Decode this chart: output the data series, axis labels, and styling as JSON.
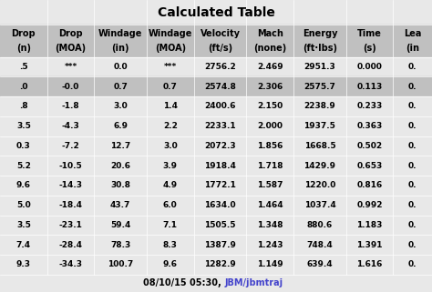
{
  "title": "Calculated Table",
  "headers_line1": [
    "Drop",
    "Drop",
    "Windage",
    "Windage",
    "Velocity",
    "Mach",
    "Energy",
    "Time",
    "Lea"
  ],
  "headers_line2": [
    "(n)",
    "(MOA)",
    "(in)",
    "(MOA)",
    "(ft/s)",
    "(none)",
    "(ft·lbs)",
    "(s)",
    "(in"
  ],
  "col_headers": [
    [
      "Drop",
      "(n)"
    ],
    [
      "Drop",
      "(MOA)"
    ],
    [
      "Windage",
      "(in)"
    ],
    [
      "Windage",
      "(MOA)"
    ],
    [
      "Velocity",
      "(ft/s)"
    ],
    [
      "Mach",
      "(none)"
    ],
    [
      "Energy",
      "(ft·lbs)"
    ],
    [
      "Time",
      "(s)"
    ],
    [
      "Lea",
      "(in"
    ]
  ],
  "rows": [
    [
      ".5",
      "***",
      "0.0",
      "***",
      "2756.2",
      "2.469",
      "2951.3",
      "0.000",
      "0."
    ],
    [
      ".0",
      "-0.0",
      "0.7",
      "0.7",
      "2574.8",
      "2.306",
      "2575.7",
      "0.113",
      "0."
    ],
    [
      ".8",
      "-1.8",
      "3.0",
      "1.4",
      "2400.6",
      "2.150",
      "2238.9",
      "0.233",
      "0."
    ],
    [
      "3.5",
      "-4.3",
      "6.9",
      "2.2",
      "2233.1",
      "2.000",
      "1937.5",
      "0.363",
      "0."
    ],
    [
      "0.3",
      "-7.2",
      "12.7",
      "3.0",
      "2072.3",
      "1.856",
      "1668.5",
      "0.502",
      "0."
    ],
    [
      "5.2",
      "-10.5",
      "20.6",
      "3.9",
      "1918.4",
      "1.718",
      "1429.9",
      "0.653",
      "0."
    ],
    [
      "9.6",
      "-14.3",
      "30.8",
      "4.9",
      "1772.1",
      "1.587",
      "1220.0",
      "0.816",
      "0."
    ],
    [
      "5.0",
      "-18.4",
      "43.7",
      "6.0",
      "1634.0",
      "1.464",
      "1037.4",
      "0.992",
      "0."
    ],
    [
      "3.5",
      "-23.1",
      "59.4",
      "7.1",
      "1505.5",
      "1.348",
      "880.6",
      "1.183",
      "0."
    ],
    [
      "7.4",
      "-28.4",
      "78.3",
      "8.3",
      "1387.9",
      "1.243",
      "748.4",
      "1.391",
      "0."
    ],
    [
      "9.3",
      "-34.3",
      "100.7",
      "9.6",
      "1282.9",
      "1.149",
      "639.4",
      "1.616",
      "0."
    ]
  ],
  "shaded_rows": [
    1
  ],
  "footer": "08/10/15 05:30, JBM/jbmtraj",
  "footer_link_text": "JBM/jbmtraj",
  "bg_color": "#d3d3d3",
  "cell_bg_normal": "#e8e8e8",
  "cell_bg_shaded": "#c0c0c0",
  "header_bg": "#c0c0c0",
  "title_bg": "#e8e8e8"
}
